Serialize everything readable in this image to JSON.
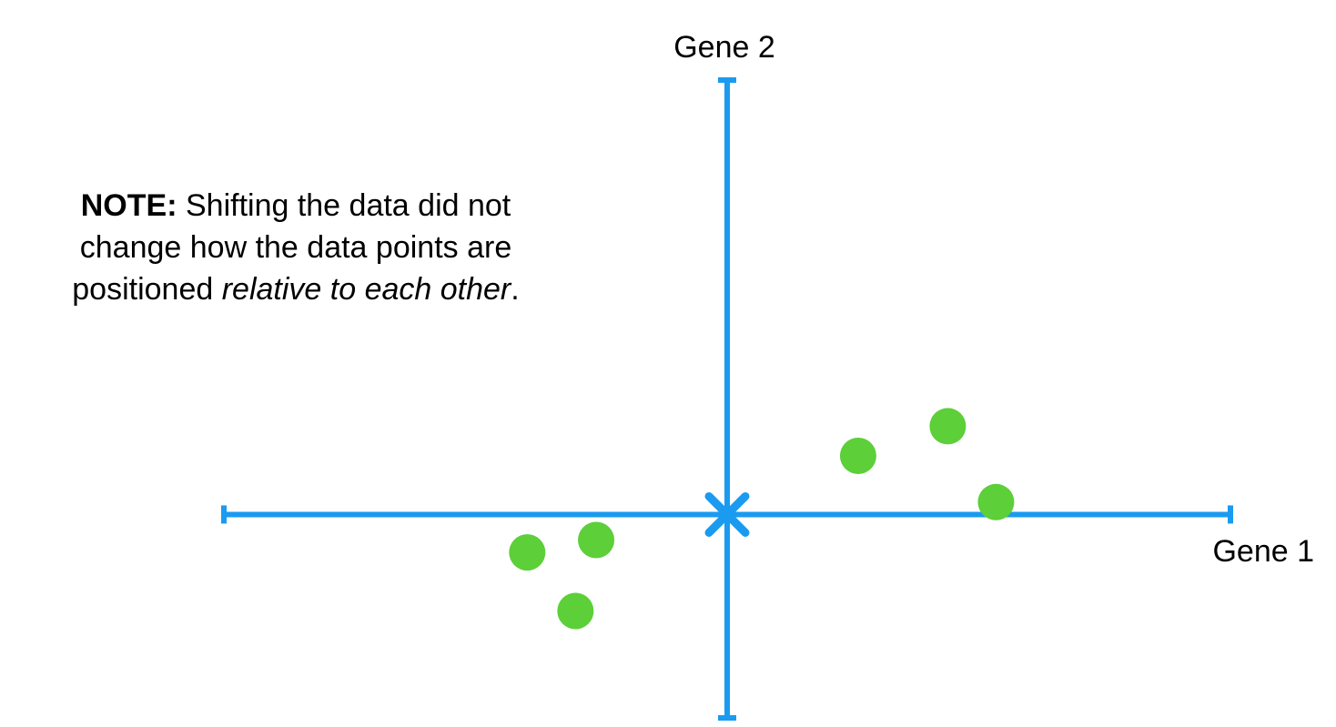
{
  "note": {
    "label": "NOTE:",
    "text_before": " Shifting the data did not change how the data points are positioned ",
    "emphasis": "relative to each other",
    "text_after": "."
  },
  "colors": {
    "axis": "#1a9bf0",
    "points": "#5ccf39",
    "text": "#000000"
  },
  "chart_data": {
    "type": "scatter",
    "xlabel": "Gene 1",
    "ylabel": "Gene 2",
    "xlim": [
      -7.3,
      7.3
    ],
    "ylim": [
      -2.95,
      6.3
    ],
    "grid": false,
    "center_marker": {
      "x": 0,
      "y": 0
    },
    "series": [
      {
        "points": [
          {
            "x": -2.9,
            "y": -0.55
          },
          {
            "x": -1.9,
            "y": -0.37
          },
          {
            "x": -2.2,
            "y": -1.4
          },
          {
            "x": 1.9,
            "y": 0.85
          },
          {
            "x": 3.2,
            "y": 1.28
          },
          {
            "x": 3.9,
            "y": 0.18
          }
        ]
      }
    ]
  }
}
